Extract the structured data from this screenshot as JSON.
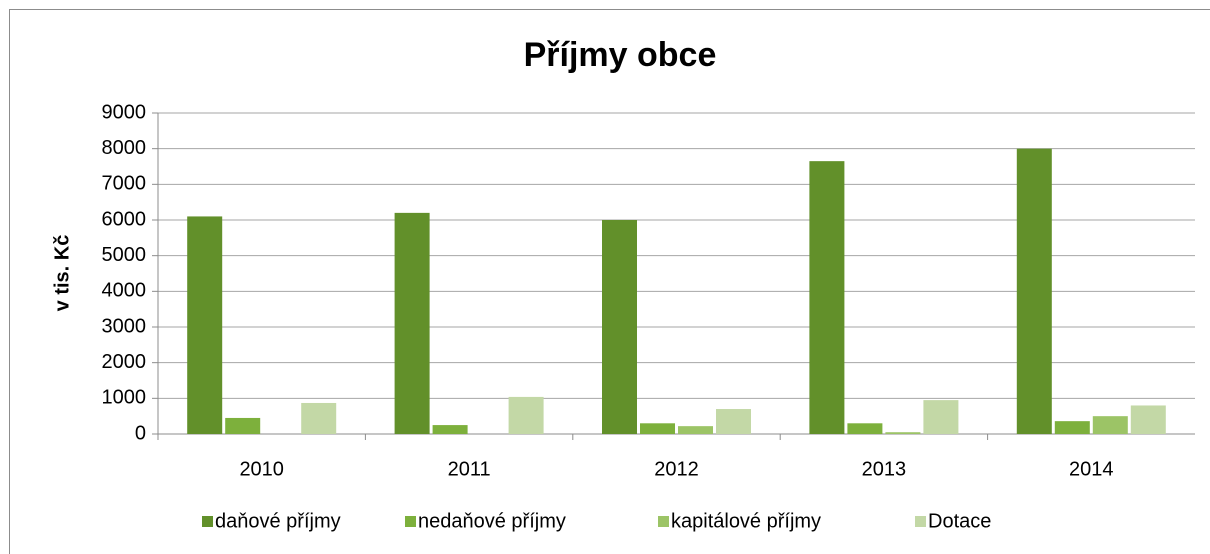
{
  "chart_data": {
    "type": "bar",
    "title": "Příjmy obce",
    "y_label": "v tis. Kč",
    "categories": [
      "2010",
      "2011",
      "2012",
      "2013",
      "2014"
    ],
    "series": [
      {
        "name": "daňové příjmy",
        "color": "#62902a",
        "values": [
          6100,
          6200,
          6000,
          7650,
          8000
        ]
      },
      {
        "name": "nedaňové příjmy",
        "color": "#7db03c",
        "values": [
          450,
          250,
          300,
          300,
          360
        ]
      },
      {
        "name": "kapitálové příjmy",
        "color": "#9cc466",
        "values": [
          0,
          0,
          220,
          50,
          500
        ]
      },
      {
        "name": "Dotace",
        "color": "#c3d8a6",
        "values": [
          870,
          1040,
          700,
          950,
          800
        ]
      }
    ],
    "ylim": [
      0,
      9000
    ],
    "yticks": [
      0,
      1000,
      2000,
      3000,
      4000,
      5000,
      6000,
      7000,
      8000,
      9000
    ],
    "grid": true,
    "legend": "bottom"
  }
}
